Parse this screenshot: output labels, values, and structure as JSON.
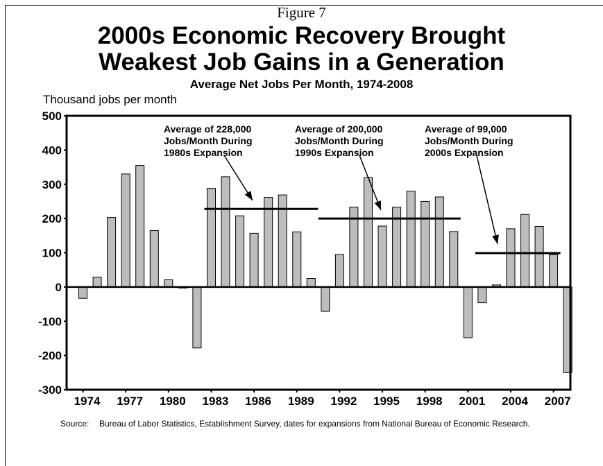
{
  "figure_label": "Figure 7",
  "title_lines": [
    "2000s Economic Recovery Brought",
    "Weakest Job Gains in a Generation"
  ],
  "source_label": "Source:",
  "source_text": "Bureau of Labor Statistics, Establishment Survey, dates for expansions from National Bureau of Economic Research.",
  "colors": {
    "bar_fill": "#bdbdbd",
    "bar_stroke": "#000000",
    "axis": "#000000"
  },
  "chart_data": {
    "type": "bar",
    "title": "Average Net Jobs Per Month, 1974-2008",
    "ylabel": "Thousand jobs per month",
    "xlabel": "",
    "ylim": [
      -300,
      500
    ],
    "yticks": [
      500,
      400,
      300,
      200,
      100,
      0,
      -100,
      -200,
      -300
    ],
    "grid": false,
    "years": [
      1974,
      1975,
      1976,
      1977,
      1978,
      1979,
      1980,
      1981,
      1982,
      1983,
      1984,
      1985,
      1986,
      1987,
      1988,
      1989,
      1990,
      1991,
      1992,
      1993,
      1994,
      1995,
      1996,
      1997,
      1998,
      1999,
      2000,
      2001,
      2002,
      2003,
      2004,
      2005,
      2006,
      2007,
      2008
    ],
    "xtick_labels": [
      "1974",
      "1977",
      "1980",
      "1983",
      "1986",
      "1989",
      "1992",
      "1995",
      "1998",
      "2001",
      "2004",
      "2007"
    ],
    "values": [
      -33,
      29,
      203,
      330,
      355,
      165,
      21,
      -3,
      -178,
      288,
      322,
      208,
      157,
      262,
      269,
      161,
      25,
      -71,
      95,
      233,
      320,
      178,
      233,
      280,
      250,
      263,
      162,
      -148,
      -46,
      6,
      170,
      212,
      177,
      95,
      -250
    ],
    "averages": [
      {
        "label_lines": [
          "Average of 228,000",
          "Jobs/Month During",
          "1980s Expansion"
        ],
        "value": 228,
        "year_start": 1983,
        "year_end": 1990
      },
      {
        "label_lines": [
          "Average of 200,000",
          "Jobs/Month During",
          "1990s Expansion"
        ],
        "value": 200,
        "year_start": 1991,
        "year_end": 2000
      },
      {
        "label_lines": [
          "Average of 99,000",
          "Jobs/Month During",
          "2000s Expansion"
        ],
        "value": 99,
        "year_start": 2002,
        "year_end": 2007
      }
    ]
  }
}
